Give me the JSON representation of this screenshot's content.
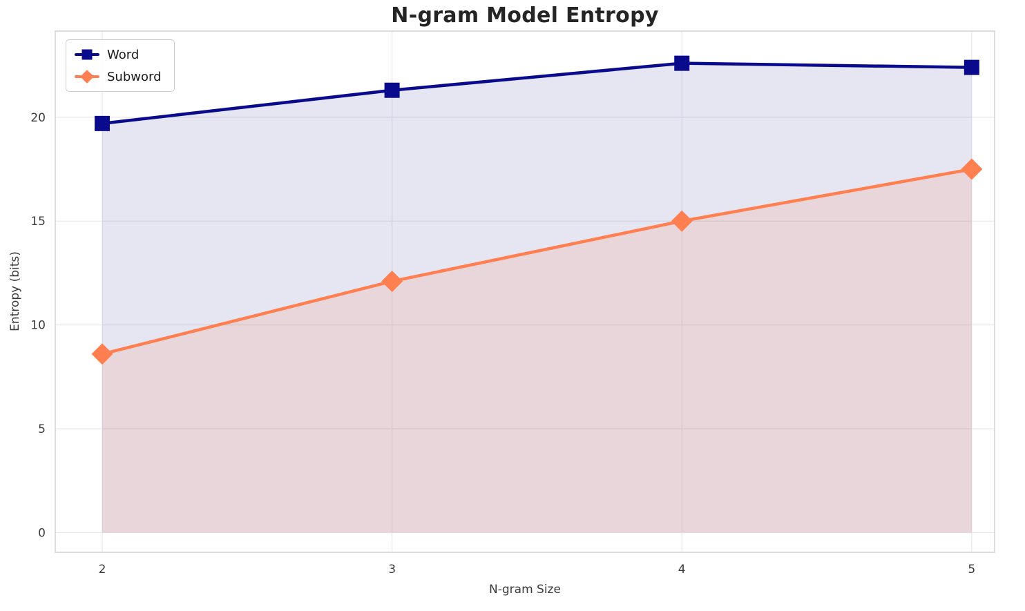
{
  "chart_data": {
    "type": "line",
    "title": "N-gram Model Entropy",
    "xlabel": "N-gram Size",
    "ylabel": "Entropy (bits)",
    "x": [
      2,
      3,
      4,
      5
    ],
    "xticks": [
      2,
      3,
      4,
      5
    ],
    "yticks": [
      0,
      5,
      10,
      15,
      20
    ],
    "xlim": [
      1.838,
      5.079
    ],
    "ylim": [
      -0.95,
      24.15
    ],
    "grid": true,
    "legend_position": "upper left",
    "fill_to_zero": true,
    "series": [
      {
        "name": "Word",
        "values": [
          19.7,
          21.3,
          22.6,
          22.4
        ],
        "color": "#0a0a8c",
        "marker": "square",
        "fill_opacity": 0.1
      },
      {
        "name": "Subword",
        "values": [
          8.6,
          12.1,
          15.0,
          17.5
        ],
        "color": "#ff7f50",
        "marker": "diamond",
        "fill_opacity": 0.15
      }
    ]
  }
}
